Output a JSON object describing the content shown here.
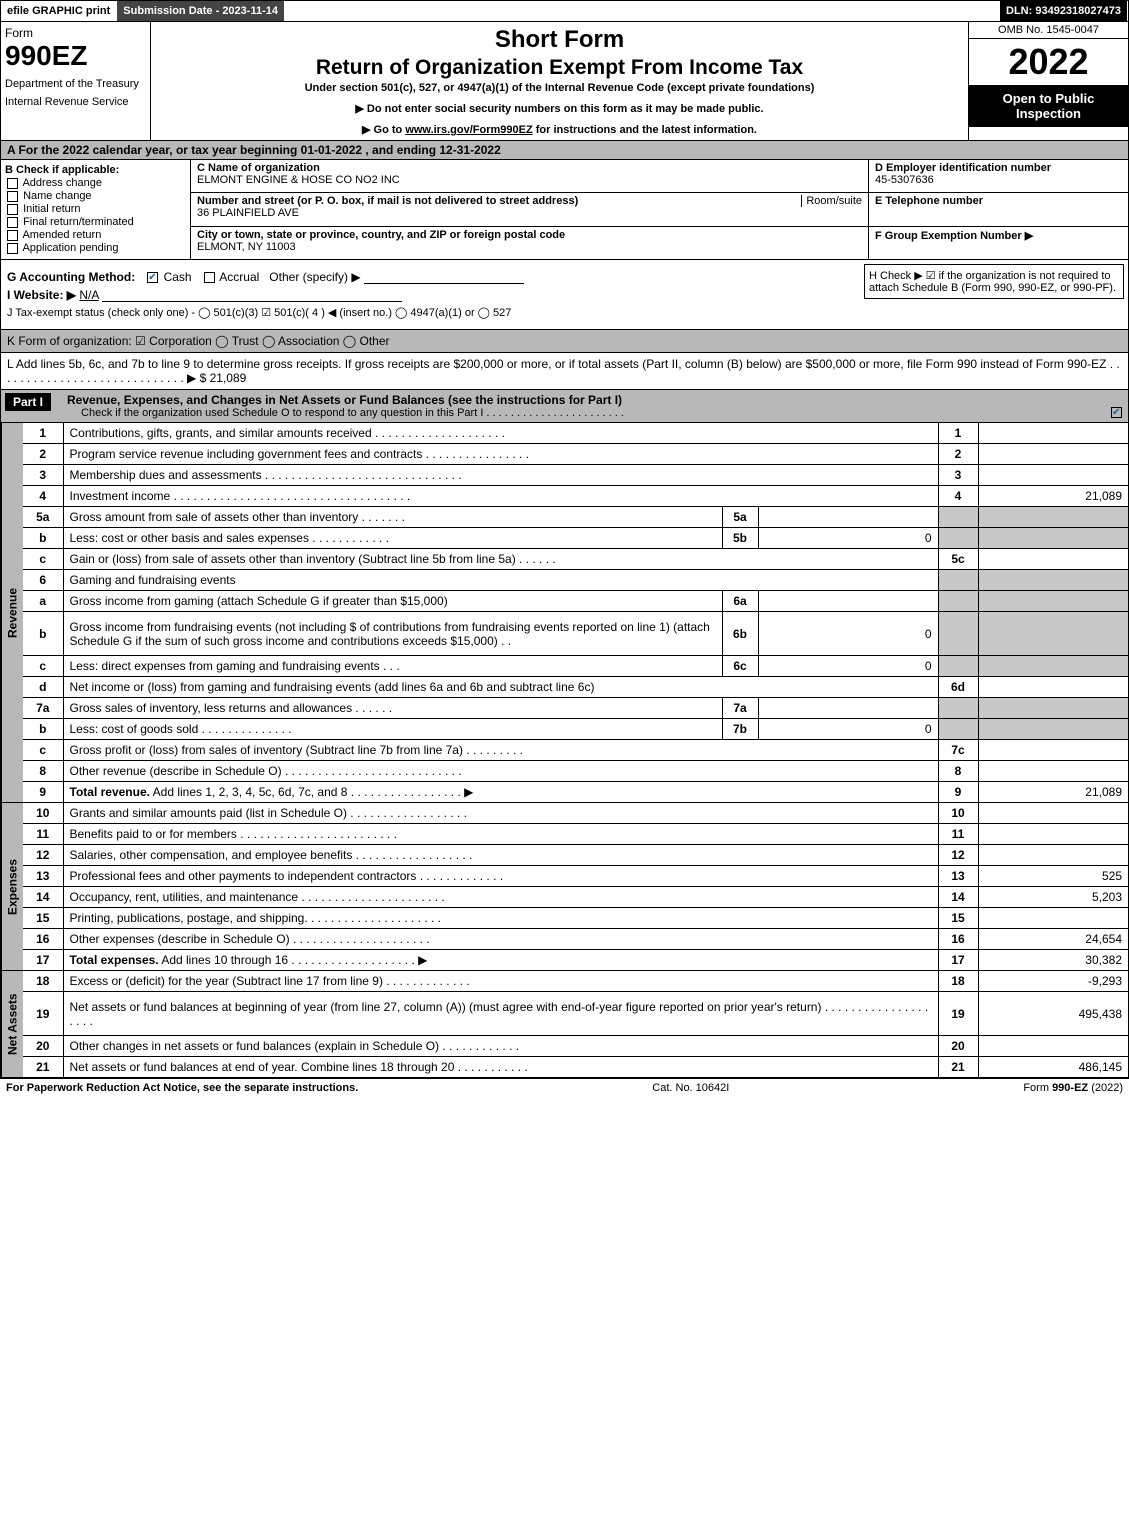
{
  "topbar": {
    "efile": "efile GRAPHIC print",
    "submission_label": "Submission Date - 2023-11-14",
    "dln": "DLN: 93492318027473"
  },
  "header": {
    "form_label": "Form",
    "form_number": "990EZ",
    "dept1": "Department of the Treasury",
    "dept2": "Internal Revenue Service",
    "short": "Short Form",
    "title": "Return of Organization Exempt From Income Tax",
    "under": "Under section 501(c), 527, or 4947(a)(1) of the Internal Revenue Code (except private foundations)",
    "note1": "▶ Do not enter social security numbers on this form as it may be made public.",
    "note2_pre": "▶ Go to ",
    "note2_link": "www.irs.gov/Form990EZ",
    "note2_post": " for instructions and the latest information.",
    "omb": "OMB No. 1545-0047",
    "year": "2022",
    "open": "Open to Public Inspection"
  },
  "A": "A  For the 2022 calendar year, or tax year beginning 01-01-2022  , and ending 12-31-2022",
  "B": {
    "label": "B  Check if applicable:",
    "opts": [
      "Address change",
      "Name change",
      "Initial return",
      "Final return/terminated",
      "Amended return",
      "Application pending"
    ]
  },
  "C": {
    "name_hdr": "C Name of organization",
    "name": "ELMONT ENGINE & HOSE CO NO2 INC",
    "addr_hdr": "Number and street (or P. O. box, if mail is not delivered to street address)",
    "room": "Room/suite",
    "addr": "36 PLAINFIELD AVE",
    "city_hdr": "City or town, state or province, country, and ZIP or foreign postal code",
    "city": "ELMONT, NY  11003"
  },
  "D": {
    "ein_hdr": "D Employer identification number",
    "ein": "45-5307636",
    "tel_hdr": "E Telephone number",
    "tel": "",
    "grp_hdr": "F Group Exemption Number   ▶",
    "grp": ""
  },
  "G": {
    "label": "G Accounting Method:",
    "cash": "Cash",
    "accrual": "Accrual",
    "other": "Other (specify) ▶"
  },
  "H": "H   Check ▶  ☑  if the organization is not required to attach Schedule B (Form 990, 990-EZ, or 990-PF).",
  "I": {
    "label": "I Website: ▶",
    "val": "N/A"
  },
  "J": "J Tax-exempt status (check only one) -  ◯ 501(c)(3)  ☑  501(c)( 4 ) ◀ (insert no.)  ◯  4947(a)(1) or  ◯  527",
  "K": "K Form of organization:   ☑ Corporation   ◯ Trust   ◯ Association   ◯ Other",
  "L": {
    "text": "L Add lines 5b, 6c, and 7b to line 9 to determine gross receipts. If gross receipts are $200,000 or more, or if total assets (Part II, column (B) below) are $500,000 or more, file Form 990 instead of Form 990-EZ  .  .  .  .  .  .  .  .  .  .  .  .  .  .  .  .  .  .  .  .  .  .  .  .  .  .  .  .  .   ▶ $",
    "val": "21,089"
  },
  "part1": {
    "header": "Part I",
    "title": "Revenue, Expenses, and Changes in Net Assets or Fund Balances (see the instructions for Part I)",
    "check": "Check if the organization used Schedule O to respond to any question in this Part I  .  .  .  .  .  .  .  .  .  .  .  .  .  .  .  .  .  .  .  .  .  .  ."
  },
  "revenue_label": "Revenue",
  "revenue": [
    {
      "n": "1",
      "desc": "Contributions, gifts, grants, and similar amounts received  .  .  .  .  .  .  .  .  .  .  .  .  .  .  .  .  .  .  .  .",
      "rn": "1",
      "rv": ""
    },
    {
      "n": "2",
      "desc": "Program service revenue including government fees and contracts  .  .  .  .  .  .  .  .  .  .  .  .  .  .  .  .",
      "rn": "2",
      "rv": ""
    },
    {
      "n": "3",
      "desc": "Membership dues and assessments  .  .  .  .  .  .  .  .  .  .  .  .  .  .  .  .  .  .  .  .  .  .  .  .  .  .  .  .  .  .",
      "rn": "3",
      "rv": ""
    },
    {
      "n": "4",
      "desc": "Investment income  .  .  .  .  .  .  .  .  .  .  .  .  .  .  .  .  .  .  .  .  .  .  .  .  .  .  .  .  .  .  .  .  .  .  .  .",
      "rn": "4",
      "rv": "21,089"
    },
    {
      "n": "5a",
      "desc": "Gross amount from sale of assets other than inventory  .  .  .  .  .  .  .",
      "sn": "5a",
      "sv": "",
      "shade": true
    },
    {
      "n": "b",
      "desc": "Less: cost or other basis and sales expenses  .  .  .  .  .  .  .  .  .  .  .  .",
      "sn": "5b",
      "sv": "0",
      "shade": true
    },
    {
      "n": "c",
      "desc": "Gain or (loss) from sale of assets other than inventory (Subtract line 5b from line 5a)  .  .  .  .  .  .",
      "rn": "5c",
      "rv": ""
    },
    {
      "n": "6",
      "desc": "Gaming and fundraising events",
      "shade": true,
      "noval": true
    },
    {
      "n": "a",
      "desc": "Gross income from gaming (attach Schedule G if greater than $15,000)",
      "sn": "6a",
      "sv": "",
      "shade": true
    },
    {
      "n": "b",
      "desc": "Gross income from fundraising events (not including $                    of contributions from fundraising events reported on line 1) (attach Schedule G if the sum of such gross income and contributions exceeds $15,000)      .   .",
      "sn": "6b",
      "sv": "0",
      "shade": true,
      "tall": true
    },
    {
      "n": "c",
      "desc": "Less: direct expenses from gaming and fundraising events    .   .   .",
      "sn": "6c",
      "sv": "0",
      "shade": true
    },
    {
      "n": "d",
      "desc": "Net income or (loss) from gaming and fundraising events (add lines 6a and 6b and subtract line 6c)",
      "rn": "6d",
      "rv": ""
    },
    {
      "n": "7a",
      "desc": "Gross sales of inventory, less returns and allowances  .  .  .  .  .  .",
      "sn": "7a",
      "sv": "",
      "shade": true
    },
    {
      "n": "b",
      "desc": "Less: cost of goods sold        .   .   .   .   .   .   .   .   .   .   .   .   .   .",
      "sn": "7b",
      "sv": "0",
      "shade": true
    },
    {
      "n": "c",
      "desc": "Gross profit or (loss) from sales of inventory (Subtract line 7b from line 7a)   .   .   .   .   .   .   .   .   .",
      "rn": "7c",
      "rv": ""
    },
    {
      "n": "8",
      "desc": "Other revenue (describe in Schedule O)  .  .  .  .  .  .  .  .  .  .  .  .  .  .  .  .  .  .  .  .  .  .  .  .  .  .  .",
      "rn": "8",
      "rv": ""
    },
    {
      "n": "9",
      "desc": "<b>Total revenue.</b> Add lines 1, 2, 3, 4, 5c, 6d, 7c, and 8   .   .   .   .   .   .   .   .   .   .   .   .   .   .   .   .   .   ▶",
      "rn": "9",
      "rv": "21,089"
    }
  ],
  "expenses_label": "Expenses",
  "expenses": [
    {
      "n": "10",
      "desc": "Grants and similar amounts paid (list in Schedule O)  .   .   .   .   .   .   .   .   .   .   .   .   .   .   .   .   .   .",
      "rn": "10",
      "rv": ""
    },
    {
      "n": "11",
      "desc": "Benefits paid to or for members       .   .   .   .   .   .   .   .   .   .   .   .   .   .   .   .   .   .   .   .   .   .   .   .",
      "rn": "11",
      "rv": ""
    },
    {
      "n": "12",
      "desc": "Salaries, other compensation, and employee benefits .   .   .   .   .   .   .   .   .   .   .   .   .   .   .   .   .   .",
      "rn": "12",
      "rv": ""
    },
    {
      "n": "13",
      "desc": "Professional fees and other payments to independent contractors  .   .   .   .   .   .   .   .   .   .   .   .   .",
      "rn": "13",
      "rv": "525"
    },
    {
      "n": "14",
      "desc": "Occupancy, rent, utilities, and maintenance .   .   .   .   .   .   .   .   .   .   .   .   .   .   .   .   .   .   .   .   .   .",
      "rn": "14",
      "rv": "5,203"
    },
    {
      "n": "15",
      "desc": "Printing, publications, postage, and shipping.   .   .   .   .   .   .   .   .   .   .   .   .   .   .   .   .   .   .   .   .",
      "rn": "15",
      "rv": ""
    },
    {
      "n": "16",
      "desc": "Other expenses (describe in Schedule O)     .   .   .   .   .   .   .   .   .   .   .   .   .   .   .   .   .   .   .   .   .",
      "rn": "16",
      "rv": "24,654"
    },
    {
      "n": "17",
      "desc": "<b>Total expenses.</b> Add lines 10 through 16       .   .   .   .   .   .   .   .   .   .   .   .   .   .   .   .   .   .   .    ▶",
      "rn": "17",
      "rv": "30,382"
    }
  ],
  "netassets_label": "Net Assets",
  "netassets": [
    {
      "n": "18",
      "desc": "Excess or (deficit) for the year (Subtract line 17 from line 9)        .   .   .   .   .   .   .   .   .   .   .   .   .",
      "rn": "18",
      "rv": "-9,293"
    },
    {
      "n": "19",
      "desc": "Net assets or fund balances at beginning of year (from line 27, column (A)) (must agree with end-of-year figure reported on prior year's return) .   .   .   .   .   .   .   .   .   .   .   .   .   .   .   .   .   .   .   .",
      "rn": "19",
      "rv": "495,438",
      "tall": true
    },
    {
      "n": "20",
      "desc": "Other changes in net assets or fund balances (explain in Schedule O) .   .   .   .   .   .   .   .   .   .   .   .",
      "rn": "20",
      "rv": ""
    },
    {
      "n": "21",
      "desc": "Net assets or fund balances at end of year. Combine lines 18 through 20 .   .   .   .   .   .   .   .   .   .   .",
      "rn": "21",
      "rv": "486,145"
    }
  ],
  "footer": {
    "left": "For Paperwork Reduction Act Notice, see the separate instructions.",
    "mid": "Cat. No. 10642I",
    "right_pre": "Form ",
    "right_b": "990-EZ",
    "right_post": " (2022)"
  }
}
